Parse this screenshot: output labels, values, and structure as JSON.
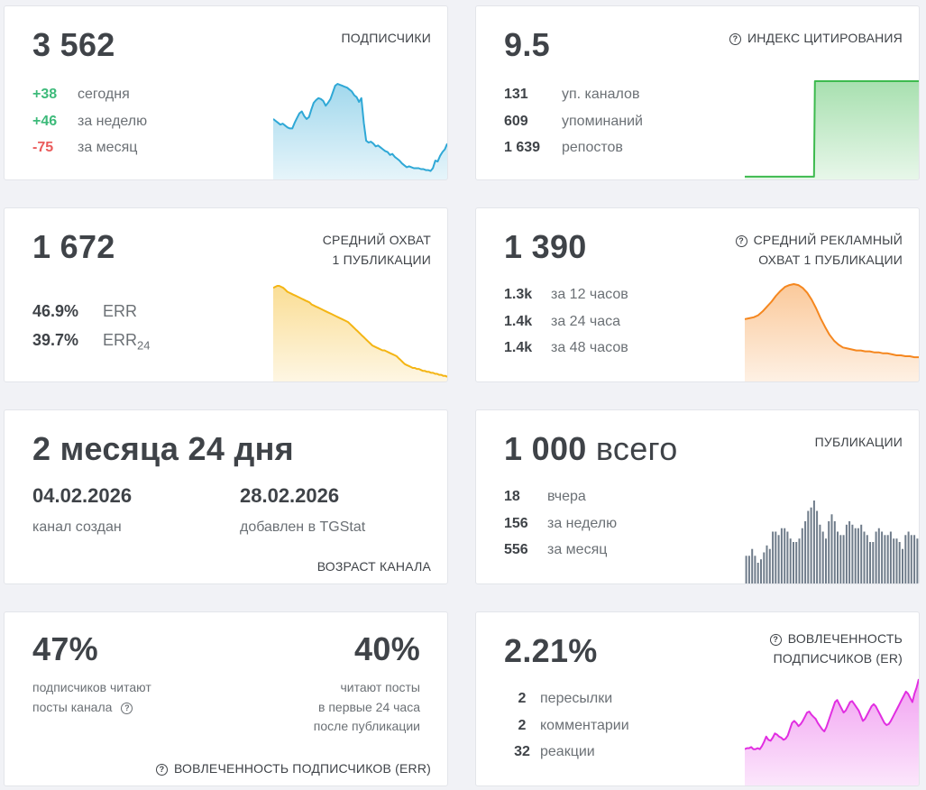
{
  "subscribers": {
    "value": "3 562",
    "title": "ПОДПИСЧИКИ",
    "rows": [
      {
        "value": "+38",
        "label": "сегодня"
      },
      {
        "value": "+46",
        "label": "за неделю"
      },
      {
        "value": "-75",
        "label": "за месяц"
      }
    ],
    "color": "#2fa8d6",
    "series": [
      62,
      60,
      58,
      56,
      57,
      55,
      53,
      52,
      52,
      58,
      63,
      68,
      70,
      65,
      62,
      64,
      72,
      79,
      82,
      84,
      83,
      81,
      76,
      79,
      83,
      90,
      97,
      99,
      98,
      97,
      96,
      95,
      93,
      91,
      87,
      85,
      80,
      84,
      58,
      39,
      37,
      38,
      36,
      33,
      34,
      32,
      30,
      28,
      27,
      24,
      25,
      22,
      20,
      18,
      15,
      13,
      11,
      12,
      11,
      10,
      10,
      10,
      9,
      9,
      8,
      8,
      7,
      10,
      18,
      17,
      23,
      27,
      30,
      36
    ]
  },
  "citation": {
    "value": "9.5",
    "title": "ИНДЕКС ЦИТИРОВАНИЯ",
    "rows": [
      {
        "value": "131",
        "label": "уп. каналов"
      },
      {
        "value": "609",
        "label": "упоминаний"
      },
      {
        "value": "1 639",
        "label": "репостов"
      }
    ],
    "color": "#3dba4e",
    "series": [
      1,
      1,
      1,
      1,
      1,
      1,
      1,
      1,
      1,
      1,
      1,
      1,
      1,
      1,
      1,
      1,
      1,
      1,
      1,
      1,
      1,
      1,
      1,
      1,
      1,
      1,
      1,
      1,
      1,
      1,
      1,
      1,
      1,
      1,
      1,
      1,
      1,
      1,
      1,
      1,
      1,
      1,
      1,
      1,
      1,
      1,
      1,
      1,
      1,
      1,
      1,
      1,
      1,
      1,
      1,
      1,
      1,
      1,
      1,
      1,
      1,
      1,
      1,
      1,
      1,
      1,
      1,
      1,
      1,
      1,
      1,
      1,
      1,
      1,
      1,
      1,
      1,
      100,
      100,
      100,
      100,
      100,
      100,
      100,
      100,
      100,
      100,
      100,
      100,
      100,
      100,
      100,
      100,
      100,
      100,
      100,
      100,
      100,
      100,
      100,
      100,
      100,
      100,
      100,
      100,
      100,
      100,
      100,
      100,
      100,
      100,
      100,
      100,
      100,
      100,
      100,
      100,
      100,
      100,
      100,
      100,
      100,
      100,
      100,
      100,
      100,
      100,
      100,
      100,
      100,
      100,
      100,
      100,
      100,
      100,
      100,
      100,
      100,
      100,
      100,
      100,
      100,
      100,
      100,
      100,
      100,
      100,
      100,
      100,
      100,
      100,
      100,
      100,
      100,
      100,
      100,
      100,
      100,
      100,
      100,
      100,
      100,
      100,
      100,
      100,
      100,
      100,
      100,
      100,
      100,
      100,
      100,
      100,
      100,
      100,
      100,
      100,
      100,
      100,
      100,
      100,
      100,
      100,
      100,
      100,
      100,
      100,
      100,
      100,
      100,
      100,
      100
    ]
  },
  "reach": {
    "value": "1 672",
    "title_line1": "СРЕДНИЙ ОХВАТ",
    "title_line2": "1 ПУБЛИКАЦИИ",
    "err_value": "46.9%",
    "err_label": "ERR",
    "err24_value": "39.7%",
    "err24_label": "ERR",
    "err24_sub": "24",
    "color": "#f4b514",
    "series": [
      94,
      95,
      96,
      96,
      95,
      94,
      92,
      90,
      89,
      88,
      87,
      86,
      85,
      84,
      83,
      82,
      81,
      80,
      79,
      77,
      76,
      75,
      74,
      73,
      72,
      71,
      70,
      69,
      68,
      67,
      66,
      65,
      64,
      63,
      62,
      61,
      60,
      59,
      57,
      55,
      53,
      51,
      49,
      47,
      45,
      43,
      41,
      39,
      37,
      35,
      34,
      33,
      32,
      31,
      30,
      30,
      29,
      28,
      27,
      26,
      25,
      24,
      22,
      20,
      18,
      16,
      15,
      14,
      13,
      12,
      12,
      11,
      11,
      10,
      9,
      9,
      8,
      8,
      7,
      7,
      6,
      6,
      5,
      5,
      4,
      4,
      3
    ]
  },
  "ad_reach": {
    "value": "1 390",
    "title_line1": "СРЕДНИЙ РЕКЛАМНЫЙ",
    "title_line2": "ОХВАТ 1 ПУБЛИКАЦИИ",
    "rows": [
      {
        "value": "1.3k",
        "label": "за 12 часов"
      },
      {
        "value": "1.4k",
        "label": "за 24 часа"
      },
      {
        "value": "1.4k",
        "label": "за 48 часов"
      }
    ],
    "color": "#f5871f",
    "series": [
      62,
      63,
      64,
      66,
      70,
      75,
      80,
      86,
      91,
      95,
      97,
      98,
      97,
      94,
      89,
      82,
      73,
      63,
      54,
      46,
      40,
      36,
      33,
      32,
      31,
      30,
      30,
      29,
      29,
      28,
      28,
      27,
      27,
      26,
      25,
      25,
      24,
      24,
      23,
      23
    ]
  },
  "age": {
    "value": "2 месяца 24 дня",
    "created_date": "04.02.2026",
    "created_label": "канал создан",
    "added_date": "28.02.2026",
    "added_label": "добавлен в TGStat",
    "title": "ВОЗРАСТ КАНАЛА"
  },
  "publications": {
    "value_num": "1 000",
    "value_word": "всего",
    "title": "ПУБЛИКАЦИИ",
    "rows": [
      {
        "value": "18",
        "label": "вчера"
      },
      {
        "value": "156",
        "label": "за неделю"
      },
      {
        "value": "556",
        "label": "за месяц"
      }
    ],
    "color": "#6f7c8a",
    "series": [
      8,
      8,
      10,
      8,
      6,
      7,
      9,
      11,
      10,
      15,
      15,
      14,
      16,
      16,
      15,
      13,
      12,
      12,
      13,
      16,
      18,
      21,
      22,
      24,
      21,
      17,
      15,
      13,
      18,
      20,
      18,
      15,
      14,
      14,
      17,
      18,
      17,
      16,
      16,
      17,
      15,
      14,
      12,
      12,
      15,
      16,
      15,
      14,
      14,
      15,
      13,
      13,
      12,
      10,
      14,
      15,
      14,
      14,
      13
    ]
  },
  "err": {
    "left_value": "47%",
    "left_line1": "подписчиков читают",
    "left_line2": "посты канала",
    "right_value": "40%",
    "right_line1": "читают посты",
    "right_line2": "в первые 24 часа",
    "right_line3": "после публикации",
    "title": "ВОВЛЕЧЕННОСТЬ ПОДПИСЧИКОВ (ERR)"
  },
  "engagement": {
    "value": "2.21%",
    "title_line1": "ВОВЛЕЧЕННОСТЬ",
    "title_line2": "ПОДПИСЧИКОВ (ER)",
    "rows": [
      {
        "value": "2",
        "label": "пересылки"
      },
      {
        "value": "2",
        "label": "комментарии"
      },
      {
        "value": "32",
        "label": "реакции"
      }
    ],
    "color": "#e12ee1",
    "series": [
      33,
      34,
      34,
      35,
      33,
      33,
      34,
      33,
      36,
      40,
      45,
      42,
      41,
      44,
      48,
      47,
      45,
      44,
      42,
      43,
      46,
      52,
      58,
      60,
      58,
      55,
      57,
      60,
      64,
      68,
      69,
      66,
      64,
      62,
      58,
      55,
      52,
      50,
      54,
      60,
      66,
      72,
      78,
      80,
      76,
      72,
      68,
      70,
      74,
      78,
      79,
      76,
      73,
      70,
      65,
      60,
      62,
      66,
      70,
      74,
      76,
      74,
      70,
      66,
      62,
      58,
      56,
      57,
      60,
      64,
      68,
      72,
      76,
      80,
      84,
      88,
      86,
      82,
      78,
      86,
      92,
      100
    ]
  },
  "icons": {
    "help": "?"
  }
}
